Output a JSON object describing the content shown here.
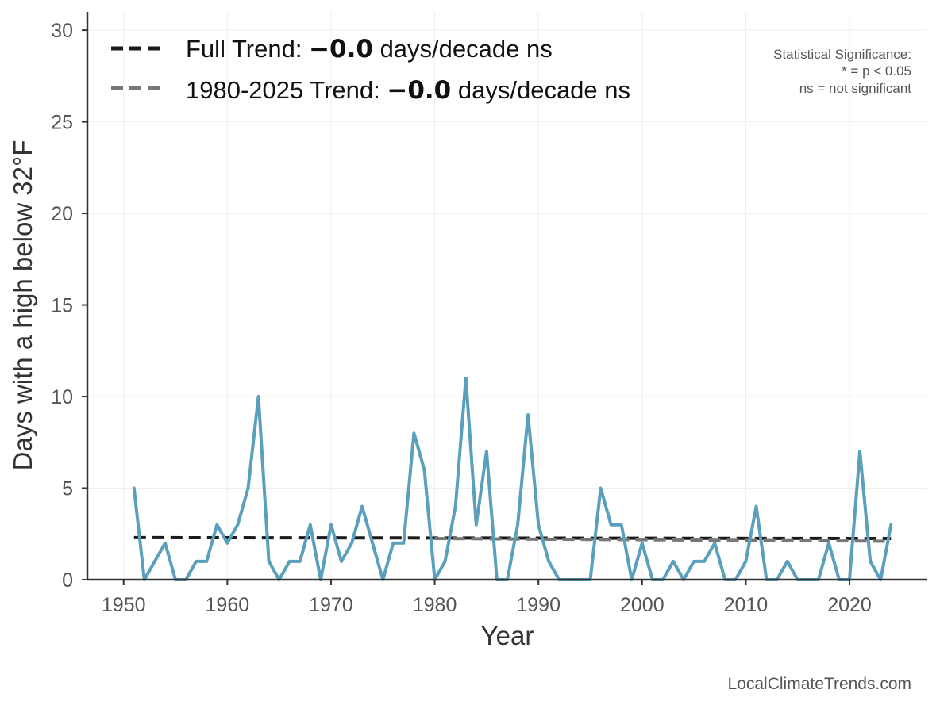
{
  "chart_data": {
    "type": "line",
    "xlabel": "Year",
    "ylabel": "Days with a high below 32°F",
    "xlim": [
      1946.5,
      2027.5
    ],
    "ylim": [
      0,
      31
    ],
    "xticks": [
      1950,
      1960,
      1970,
      1980,
      1990,
      2000,
      2010,
      2020
    ],
    "yticks": [
      0,
      5,
      10,
      15,
      20,
      25,
      30
    ],
    "grid": true,
    "colors": {
      "series": "#5a9fbc",
      "full_trend": "#1a1a1a",
      "recent_trend": "#777777",
      "grid": "#eeeeee",
      "axis": "#333333"
    },
    "series": [
      {
        "name": "Days with a high below 32°F",
        "x": [
          1951,
          1952,
          1953,
          1954,
          1955,
          1956,
          1957,
          1958,
          1959,
          1960,
          1961,
          1962,
          1963,
          1964,
          1965,
          1966,
          1967,
          1968,
          1969,
          1970,
          1971,
          1972,
          1973,
          1974,
          1975,
          1976,
          1977,
          1978,
          1979,
          1980,
          1981,
          1982,
          1983,
          1984,
          1985,
          1986,
          1987,
          1988,
          1989,
          1990,
          1991,
          1992,
          1993,
          1994,
          1995,
          1996,
          1997,
          1998,
          1999,
          2000,
          2001,
          2002,
          2003,
          2004,
          2005,
          2006,
          2007,
          2008,
          2009,
          2010,
          2011,
          2012,
          2013,
          2014,
          2015,
          2016,
          2017,
          2018,
          2019,
          2020,
          2021,
          2022,
          2023,
          2024
        ],
        "values": [
          5,
          0,
          1,
          2,
          0,
          0,
          1,
          1,
          3,
          2,
          3,
          5,
          10,
          1,
          0,
          1,
          1,
          3,
          0,
          3,
          1,
          2,
          4,
          2,
          0,
          2,
          2,
          8,
          6,
          0,
          1,
          4,
          11,
          3,
          7,
          0,
          0,
          3,
          9,
          3,
          1,
          0,
          0,
          0,
          0,
          5,
          3,
          3,
          0,
          2,
          0,
          0,
          1,
          0,
          1,
          1,
          2,
          0,
          0,
          1,
          4,
          0,
          0,
          1,
          0,
          0,
          0,
          2,
          0,
          0,
          7,
          1,
          0,
          3
        ]
      }
    ],
    "trends": [
      {
        "name": "Full Trend",
        "x": [
          1951,
          2024
        ],
        "y": [
          2.3,
          2.25
        ]
      },
      {
        "name": "1980-2025 Trend",
        "x": [
          1980,
          2024
        ],
        "y": [
          2.25,
          2.1
        ]
      }
    ],
    "legend": {
      "placement": "top-left",
      "entries": [
        {
          "prefix": "Full Trend: ",
          "value": "−0.0",
          "suffix": " days/decade ns"
        },
        {
          "prefix": "1980-2025 Trend: ",
          "value": "−0.0",
          "suffix": " days/decade ns"
        }
      ]
    },
    "significance_note": {
      "title": "Statistical Significance:",
      "line1": "* = p < 0.05",
      "line2": "ns = not significant"
    }
  },
  "credit": "LocalClimateTrends.com"
}
